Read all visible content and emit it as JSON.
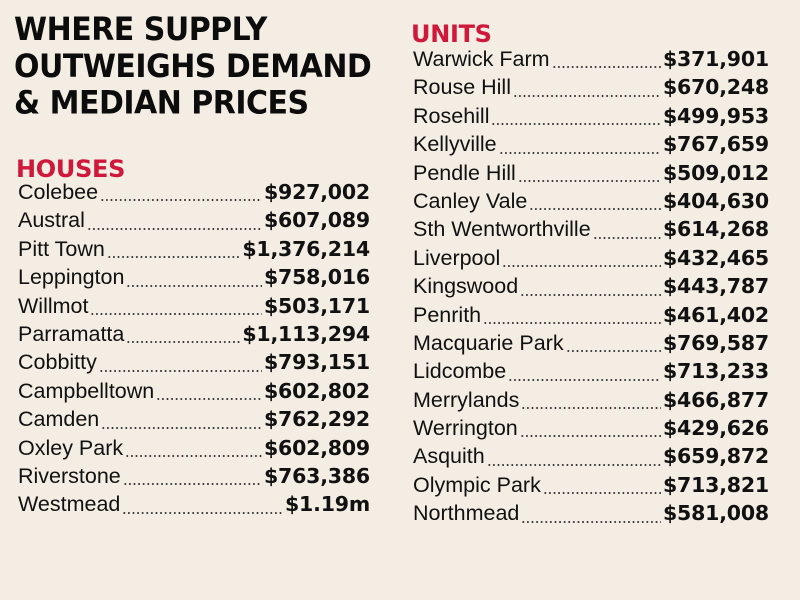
{
  "title_lines": [
    "WHERE SUPPLY",
    "OUTWEIGHS DEMAND",
    "& MEDIAN PRICES"
  ],
  "houses": {
    "heading": "HOUSES",
    "rows": [
      {
        "suburb": "Colebee",
        "price": "$927,002"
      },
      {
        "suburb": "Austral",
        "price": "$607,089"
      },
      {
        "suburb": "Pitt Town",
        "price": "$1,376,214"
      },
      {
        "suburb": "Leppington",
        "price": "$758,016"
      },
      {
        "suburb": "Willmot",
        "price": "$503,171"
      },
      {
        "suburb": "Parramatta",
        "price": "$1,113,294"
      },
      {
        "suburb": "Cobbitty",
        "price": "$793,151"
      },
      {
        "suburb": "Campbelltown",
        "price": "$602,802"
      },
      {
        "suburb": "Camden",
        "price": "$762,292"
      },
      {
        "suburb": "Oxley Park",
        "price": "$602,809"
      },
      {
        "suburb": "Riverstone",
        "price": "$763,386"
      },
      {
        "suburb": "Westmead",
        "price": "$1.19m"
      }
    ]
  },
  "units": {
    "heading": "UNITS",
    "rows": [
      {
        "suburb": "Warwick Farm",
        "price": "$371,901"
      },
      {
        "suburb": "Rouse Hill",
        "price": "$670,248"
      },
      {
        "suburb": "Rosehill",
        "price": "$499,953"
      },
      {
        "suburb": "Kellyville",
        "price": "$767,659"
      },
      {
        "suburb": "Pendle Hill",
        "price": "$509,012"
      },
      {
        "suburb": "Canley Vale",
        "price": "$404,630"
      },
      {
        "suburb": "Sth Wentworthville",
        "price": "$614,268"
      },
      {
        "suburb": "Liverpool",
        "price": "$432,465"
      },
      {
        "suburb": "Kingswood",
        "price": "$443,787"
      },
      {
        "suburb": "Penrith",
        "price": "$461,402"
      },
      {
        "suburb": "Macquarie Park",
        "price": "$769,587"
      },
      {
        "suburb": "Lidcombe",
        "price": "$713,233"
      },
      {
        "suburb": "Merrylands",
        "price": "$466,877"
      },
      {
        "suburb": "Werrington",
        "price": "$429,626"
      },
      {
        "suburb": "Asquith",
        "price": "$659,872"
      },
      {
        "suburb": "Olympic Park",
        "price": "$713,821"
      },
      {
        "suburb": "Northmead",
        "price": "$581,008"
      }
    ]
  }
}
